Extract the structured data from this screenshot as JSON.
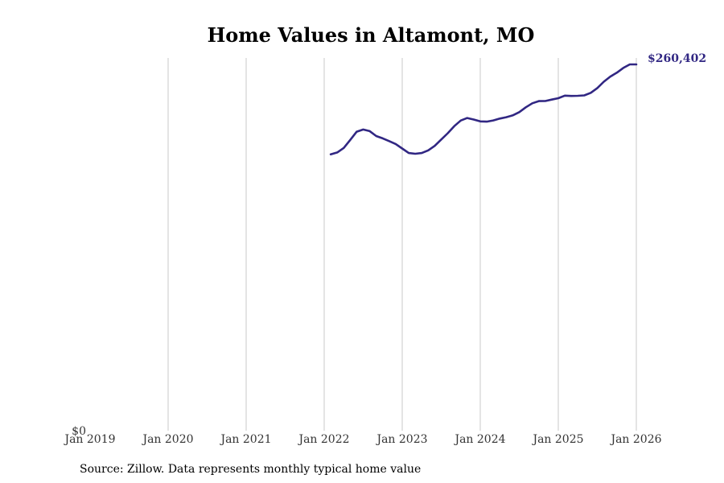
{
  "chart_data": {
    "type": "line",
    "title": "Home Values in Altamont, MO",
    "source": "Source: Zillow. Data represents monthly typical home value",
    "xlabel": "",
    "ylabel": "",
    "x_ticks": [
      "Jan 2019",
      "Jan 2020",
      "Jan 2021",
      "Jan 2022",
      "Jan 2023",
      "Jan 2024",
      "Jan 2025",
      "Jan 2026"
    ],
    "x_range": [
      2019.0,
      2026.0
    ],
    "y_ticks": [
      {
        "value": 0,
        "label": "$0"
      }
    ],
    "ylim": [
      0,
      265000
    ],
    "grid": "vertical",
    "line_color": "#312783",
    "end_label": "$260,402",
    "series": [
      {
        "name": "Typical home value",
        "x": [
          2022.083,
          2022.167,
          2022.25,
          2022.333,
          2022.417,
          2022.5,
          2022.583,
          2022.667,
          2022.75,
          2022.833,
          2022.917,
          2023.0,
          2023.083,
          2023.167,
          2023.25,
          2023.333,
          2023.417,
          2023.5,
          2023.583,
          2023.667,
          2023.75,
          2023.833,
          2023.917,
          2024.0,
          2024.083,
          2024.167,
          2024.25,
          2024.333,
          2024.417,
          2024.5,
          2024.583,
          2024.667,
          2024.75,
          2024.833,
          2024.917,
          2025.0,
          2025.083,
          2025.167,
          2025.25,
          2025.333,
          2025.417,
          2025.5,
          2025.583,
          2025.667,
          2025.75,
          2025.833,
          2025.917,
          2026.0
        ],
        "values": [
          196500,
          197800,
          201000,
          206700,
          212600,
          214100,
          213000,
          209500,
          207800,
          205900,
          203800,
          200600,
          197400,
          196900,
          197400,
          199300,
          202500,
          207000,
          211500,
          216500,
          220500,
          222300,
          221200,
          219900,
          219700,
          220600,
          221900,
          222900,
          224200,
          226500,
          229900,
          232800,
          234300,
          234400,
          235400,
          236400,
          238200,
          238000,
          238100,
          238400,
          240200,
          243600,
          248100,
          251800,
          254500,
          257900,
          260402,
          260402
        ]
      }
    ]
  }
}
